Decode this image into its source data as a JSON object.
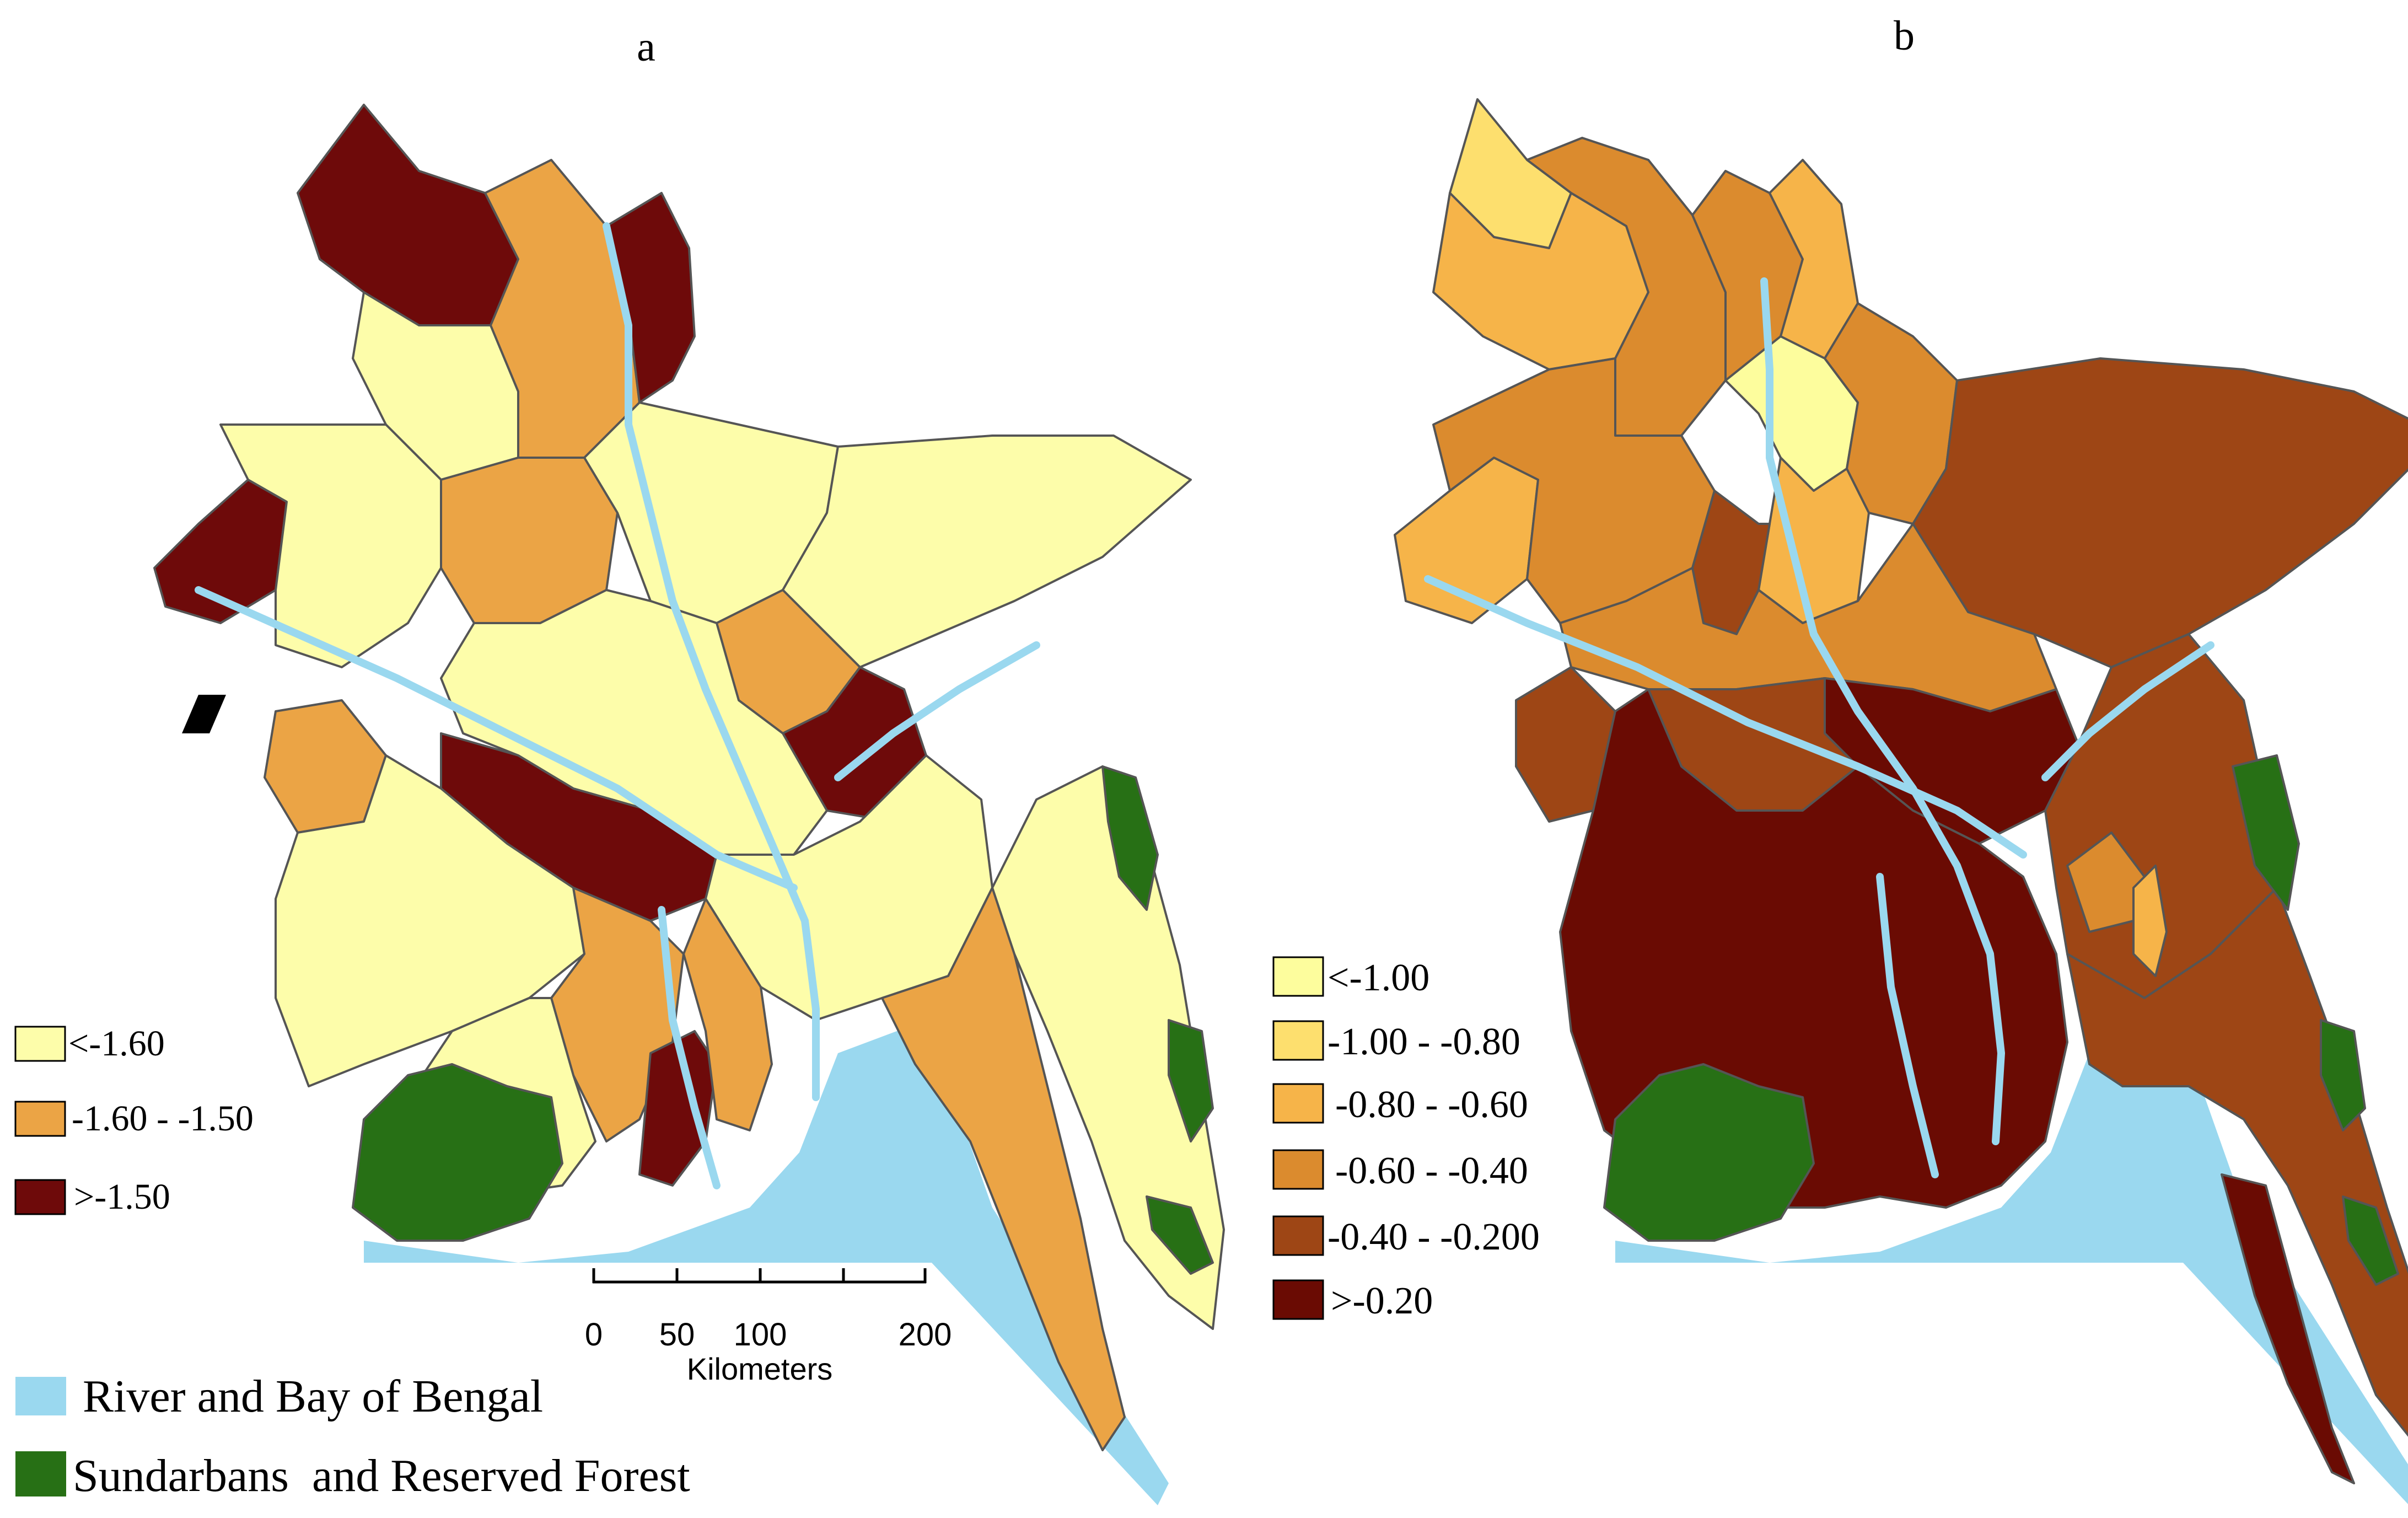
{
  "colors": {
    "water": "#9ad8ef",
    "forest": "#277015",
    "a_low": "#fdfdaa",
    "a_mid": "#eba445",
    "a_high": "#6e0a0a",
    "b_1": "#fdfd9d",
    "b_2": "#fddf6e",
    "b_3": "#f6b449",
    "b_4": "#db8b2e",
    "b_5": "#9e4615",
    "b_6": "#6a0b03"
  },
  "panel_a": {
    "label": "a",
    "legend": [
      {
        "label": "<-1.60",
        "color_key": "a_low"
      },
      {
        "label": "-1.60 - -1.50",
        "color_key": "a_mid"
      },
      {
        "label": ">-1.50",
        "color_key": "a_high"
      }
    ]
  },
  "panel_b": {
    "label": "b",
    "legend": [
      {
        "label": "<-1.00",
        "color_key": "b_1"
      },
      {
        "label": "-1.00 - -0.80",
        "color_key": "b_2"
      },
      {
        "label": "-0.80 - -0.60",
        "color_key": "b_3"
      },
      {
        "label": "-0.60 - -0.40",
        "color_key": "b_4"
      },
      {
        "label": "-0.40 - -0.200",
        "color_key": "b_5"
      },
      {
        "label": ">-0.20",
        "color_key": "b_6"
      }
    ]
  },
  "scale_bar": {
    "ticks": [
      "0",
      "50",
      "100",
      "200"
    ],
    "unit": "Kilometers"
  },
  "shared_legend": {
    "water": "River and Bay of Bengal",
    "forest": "Sundarbans  and Reserved Forest"
  }
}
